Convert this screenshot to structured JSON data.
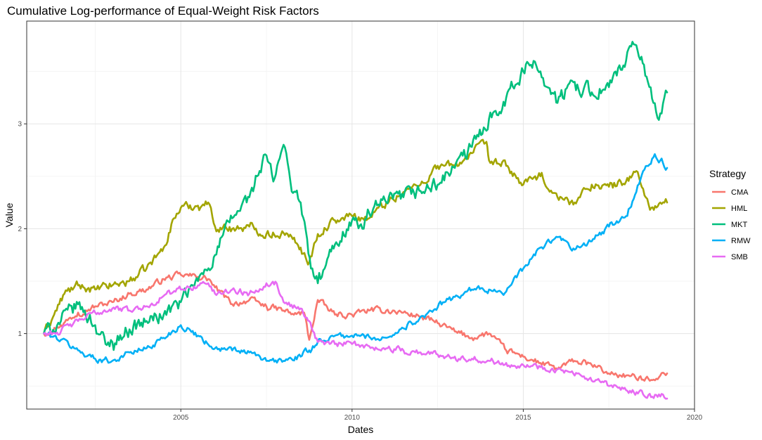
{
  "chart_data": {
    "type": "line",
    "title": "Cumulative Log-performance of Equal-Weight Risk Factors",
    "xlabel": "Dates",
    "ylabel": "Value",
    "xlim": [
      2000.5,
      2020.0
    ],
    "ylim": [
      0.28,
      3.98
    ],
    "x_ticks": [
      2005,
      2010,
      2015,
      2020
    ],
    "y_ticks": [
      1,
      2,
      3
    ],
    "grid": true,
    "legend": {
      "title": "Strategy",
      "position": "right"
    },
    "series": [
      {
        "name": "CMA",
        "color": "#F8766D",
        "x": [
          2001.0,
          2001.5,
          2002.0,
          2002.5,
          2003.0,
          2003.5,
          2004.0,
          2004.5,
          2005.0,
          2005.5,
          2005.8,
          2006.0,
          2006.5,
          2007.0,
          2007.5,
          2008.0,
          2008.3,
          2008.6,
          2008.75,
          2009.0,
          2009.5,
          2010.0,
          2010.5,
          2011.0,
          2011.5,
          2012.0,
          2012.5,
          2013.0,
          2013.5,
          2014.0,
          2014.5,
          2015.0,
          2015.5,
          2016.0,
          2016.5,
          2017.0,
          2017.5,
          2018.0,
          2018.5,
          2019.0,
          2019.2
        ],
        "y": [
          1.0,
          1.08,
          1.2,
          1.26,
          1.3,
          1.38,
          1.42,
          1.52,
          1.56,
          1.54,
          1.52,
          1.44,
          1.28,
          1.32,
          1.26,
          1.22,
          1.18,
          1.2,
          0.94,
          1.32,
          1.18,
          1.18,
          1.22,
          1.22,
          1.2,
          1.16,
          1.1,
          1.02,
          0.96,
          1.0,
          0.84,
          0.78,
          0.72,
          0.66,
          0.74,
          0.7,
          0.62,
          0.6,
          0.56,
          0.6,
          0.62
        ]
      },
      {
        "name": "HML",
        "color": "#A3A500",
        "x": [
          2001.0,
          2001.3,
          2001.6,
          2002.0,
          2002.5,
          2003.0,
          2003.5,
          2004.0,
          2004.5,
          2004.8,
          2005.0,
          2005.5,
          2005.8,
          2006.0,
          2006.5,
          2007.0,
          2007.5,
          2008.0,
          2008.5,
          2008.75,
          2009.0,
          2009.5,
          2010.0,
          2010.5,
          2011.0,
          2011.5,
          2012.0,
          2012.5,
          2013.0,
          2013.5,
          2013.9,
          2014.0,
          2014.5,
          2015.0,
          2015.5,
          2016.0,
          2016.5,
          2017.0,
          2017.5,
          2018.0,
          2018.3,
          2018.5,
          2018.7,
          2019.0,
          2019.2
        ],
        "y": [
          1.0,
          1.18,
          1.38,
          1.46,
          1.42,
          1.46,
          1.5,
          1.62,
          1.82,
          2.1,
          2.2,
          2.22,
          2.25,
          2.02,
          2.0,
          2.02,
          1.95,
          1.96,
          1.82,
          1.68,
          1.95,
          2.08,
          2.12,
          2.1,
          2.25,
          2.35,
          2.42,
          2.6,
          2.6,
          2.72,
          2.82,
          2.65,
          2.6,
          2.42,
          2.5,
          2.3,
          2.25,
          2.42,
          2.4,
          2.45,
          2.55,
          2.38,
          2.18,
          2.25,
          2.25
        ]
      },
      {
        "name": "MKT",
        "color": "#00BF7D",
        "x": [
          2001.0,
          2001.5,
          2002.0,
          2002.5,
          2002.8,
          2003.0,
          2003.5,
          2004.0,
          2004.5,
          2005.0,
          2005.5,
          2006.0,
          2006.5,
          2007.0,
          2007.3,
          2007.5,
          2007.7,
          2008.0,
          2008.2,
          2008.5,
          2008.8,
          2009.0,
          2009.2,
          2009.5,
          2010.0,
          2010.3,
          2010.5,
          2011.0,
          2011.5,
          2012.0,
          2012.5,
          2013.0,
          2013.5,
          2014.0,
          2014.5,
          2015.0,
          2015.3,
          2015.5,
          2016.0,
          2016.5,
          2017.0,
          2017.5,
          2018.0,
          2018.3,
          2018.6,
          2018.8,
          2019.0,
          2019.2
        ],
        "y": [
          1.0,
          1.12,
          1.28,
          1.08,
          0.9,
          0.92,
          1.04,
          1.12,
          1.18,
          1.3,
          1.5,
          1.75,
          2.1,
          2.3,
          2.55,
          2.7,
          2.45,
          2.8,
          2.45,
          2.25,
          1.62,
          1.48,
          1.62,
          1.85,
          2.08,
          2.0,
          2.15,
          2.25,
          2.3,
          2.36,
          2.42,
          2.58,
          2.78,
          3.05,
          3.25,
          3.5,
          3.6,
          3.5,
          3.2,
          3.4,
          3.3,
          3.35,
          3.6,
          3.75,
          3.45,
          3.2,
          3.1,
          3.3
        ]
      },
      {
        "name": "RMW",
        "color": "#00B0F6",
        "x": [
          2001.0,
          2001.5,
          2002.0,
          2002.5,
          2003.0,
          2003.5,
          2004.0,
          2004.5,
          2005.0,
          2005.5,
          2006.0,
          2006.5,
          2007.0,
          2007.5,
          2008.0,
          2008.5,
          2008.75,
          2009.0,
          2009.5,
          2010.0,
          2010.5,
          2011.0,
          2011.5,
          2012.0,
          2012.5,
          2013.0,
          2013.5,
          2014.0,
          2014.5,
          2015.0,
          2015.5,
          2016.0,
          2016.5,
          2017.0,
          2017.5,
          2018.0,
          2018.3,
          2018.5,
          2018.8,
          2019.0,
          2019.2
        ],
        "y": [
          1.0,
          0.94,
          0.84,
          0.76,
          0.74,
          0.82,
          0.86,
          0.96,
          1.08,
          0.98,
          0.86,
          0.84,
          0.82,
          0.74,
          0.74,
          0.78,
          0.84,
          0.92,
          0.98,
          0.98,
          0.97,
          0.96,
          1.05,
          1.16,
          1.25,
          1.35,
          1.42,
          1.42,
          1.4,
          1.62,
          1.82,
          1.92,
          1.8,
          1.88,
          2.02,
          2.12,
          2.35,
          2.55,
          2.68,
          2.65,
          2.58
        ]
      },
      {
        "name": "SMB",
        "color": "#E76BF3",
        "x": [
          2001.0,
          2001.5,
          2002.0,
          2002.5,
          2003.0,
          2003.5,
          2004.0,
          2004.5,
          2005.0,
          2005.5,
          2005.8,
          2006.0,
          2006.5,
          2007.0,
          2007.5,
          2007.8,
          2008.0,
          2008.5,
          2008.75,
          2009.0,
          2009.5,
          2010.0,
          2010.5,
          2011.0,
          2011.5,
          2012.0,
          2012.5,
          2013.0,
          2013.5,
          2014.0,
          2014.5,
          2015.0,
          2015.5,
          2016.0,
          2016.5,
          2017.0,
          2017.5,
          2018.0,
          2018.5,
          2019.0,
          2019.2
        ],
        "y": [
          1.0,
          1.02,
          1.12,
          1.2,
          1.24,
          1.22,
          1.26,
          1.36,
          1.42,
          1.46,
          1.48,
          1.38,
          1.42,
          1.38,
          1.48,
          1.48,
          1.3,
          1.24,
          1.12,
          0.92,
          0.9,
          0.9,
          0.88,
          0.86,
          0.84,
          0.82,
          0.8,
          0.78,
          0.76,
          0.74,
          0.72,
          0.7,
          0.68,
          0.66,
          0.6,
          0.55,
          0.5,
          0.46,
          0.42,
          0.4,
          0.38
        ]
      }
    ]
  }
}
